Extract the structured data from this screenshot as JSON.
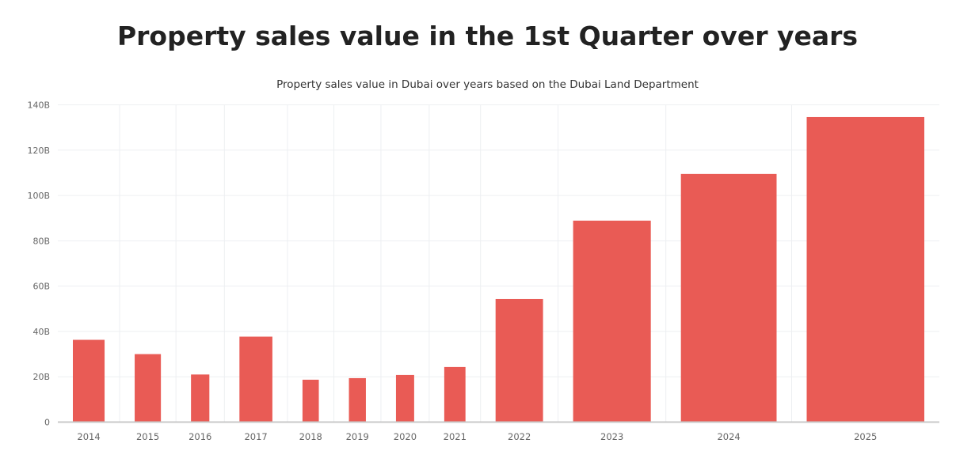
{
  "chart_data": {
    "type": "bar",
    "title": "Property sales value in the 1st Quarter over years",
    "subtitle": "Property sales value in Dubai over years based on the Dubai Land Department",
    "xlabel": "",
    "ylabel": "",
    "ylim": [
      0,
      140
    ],
    "yticks": [
      0,
      20,
      40,
      60,
      80,
      100,
      120,
      140
    ],
    "ytick_labels": [
      "0",
      "20B",
      "40B",
      "60B",
      "80B",
      "100B",
      "120B",
      "140B"
    ],
    "unit": "B",
    "grid": true,
    "bar_width_proportional_to_value": true,
    "color": "#E95B55",
    "categories": [
      "2014",
      "2015",
      "2016",
      "2017",
      "2018",
      "2019",
      "2020",
      "2021",
      "2022",
      "2023",
      "2024",
      "2025"
    ],
    "values": [
      36.3,
      30.0,
      21.0,
      37.7,
      18.7,
      19.4,
      20.8,
      24.3,
      54.3,
      88.9,
      109.5,
      134.6
    ]
  }
}
